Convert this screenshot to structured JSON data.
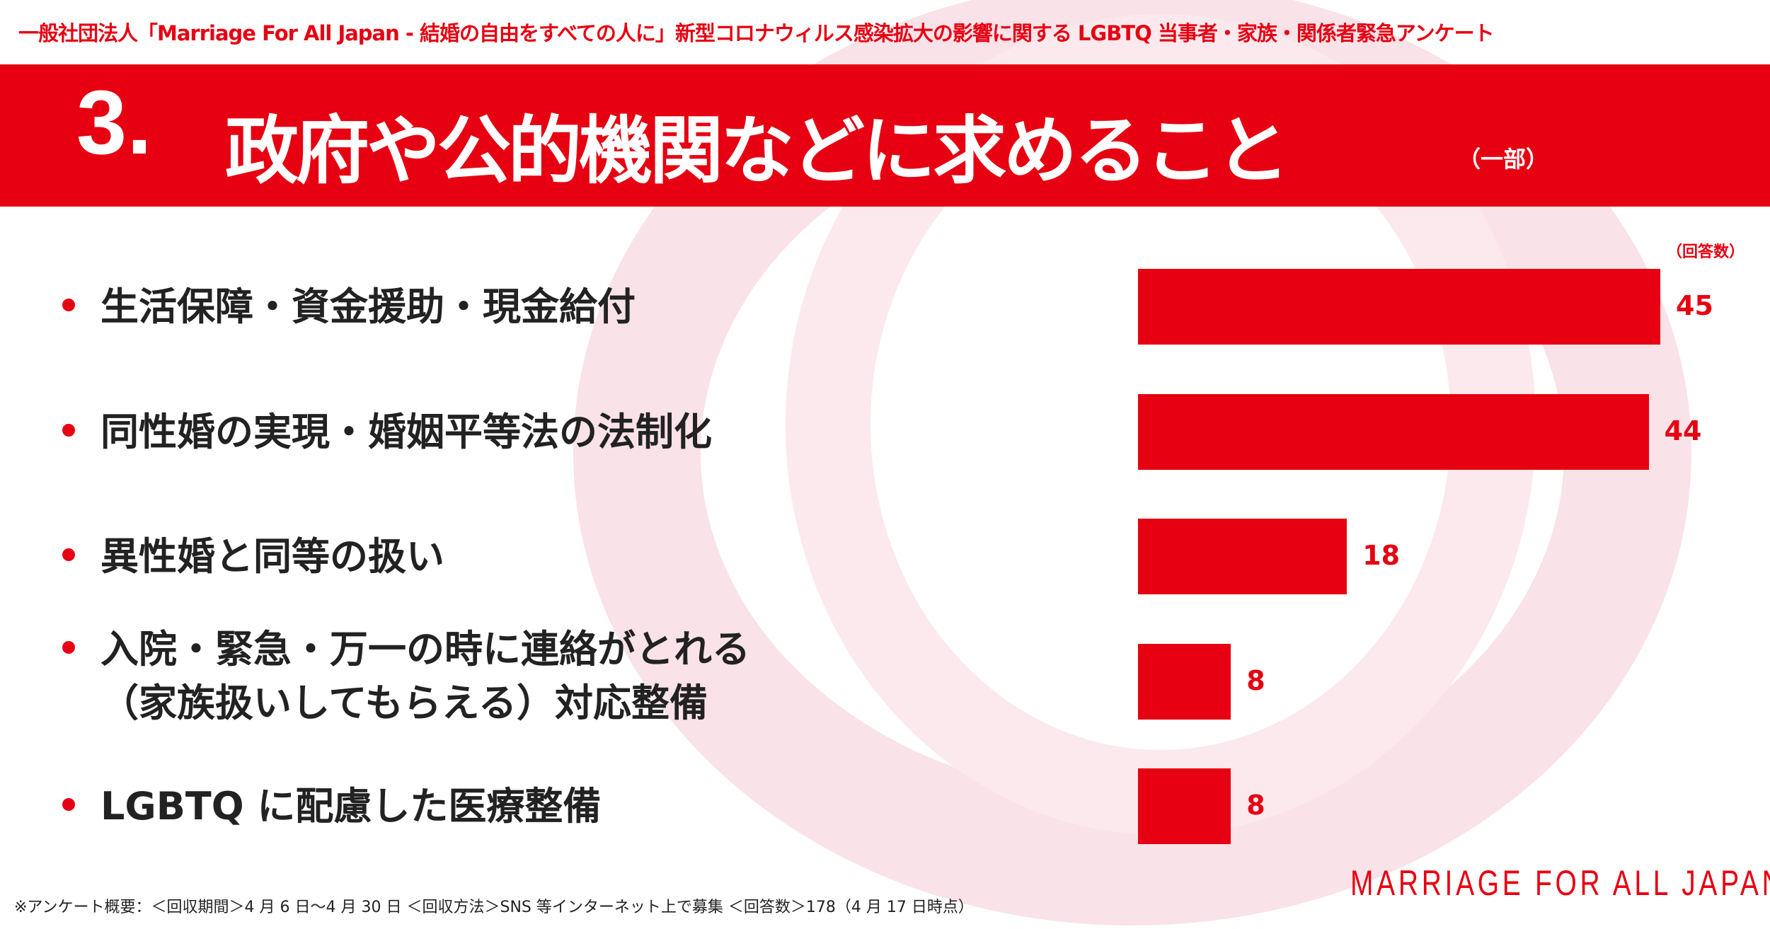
{
  "header": {
    "survey_title": "一般社団法人「Marriage For All Japan - 結婚の自由をすべての人に」新型コロナウィルス感染拡大の影響に関する LGBTQ 当事者・家族・関係者緊急アンケート",
    "section_number": "3.",
    "section_title": "政府や公的機関などに求めること",
    "section_note": "（一部）"
  },
  "chart_data": {
    "type": "bar",
    "orientation": "horizontal",
    "title": "政府や公的機関などに求めること（一部）",
    "unit_label": "（回答数）",
    "categories": [
      [
        "生活保障・資金援助・現金給付"
      ],
      [
        "同性婚の実現・婚姻平等法の法制化"
      ],
      [
        "異性婚と同等の扱い"
      ],
      [
        "入院・緊急・万一の時に連絡がとれる",
        "（家族扱いしてもらえる）対応整備"
      ],
      [
        "LGBTQ に配慮した医療整備"
      ]
    ],
    "values": [
      45,
      44,
      18,
      8,
      8
    ],
    "value_labels": [
      "45",
      "44",
      "18",
      "8",
      "8"
    ],
    "bar_color": "#e60012"
  },
  "footer": {
    "note": "※アンケート概要：＜回収期間＞4 月 6 日〜4 月 30 日 ＜回収方法＞SNS 等インターネット上で募集 ＜回答数＞178（4 月 17 日時点）",
    "logo": "MARRIAGE FOR ALL JAPAN"
  },
  "colors": {
    "accent": "#e60012",
    "ring": "#f9e2e8"
  }
}
